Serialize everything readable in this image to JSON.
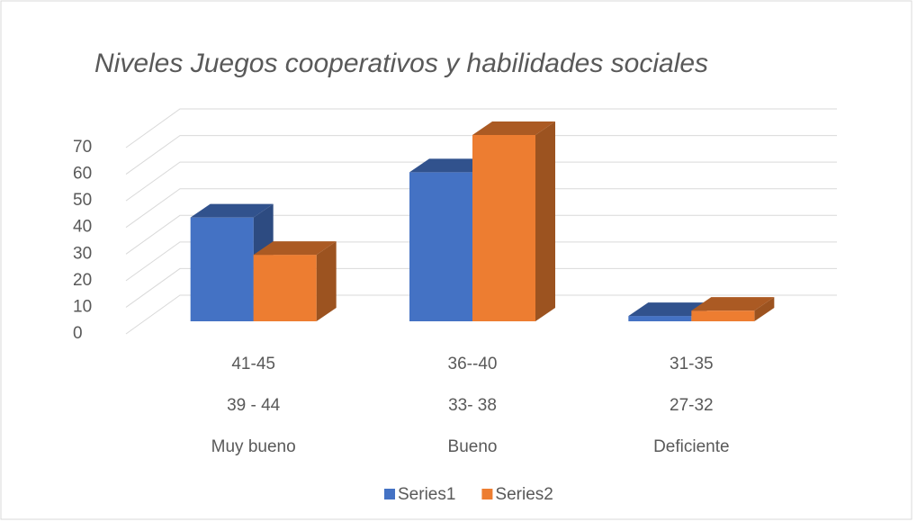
{
  "chart_data": {
    "type": "bar3d",
    "title": "Niveles Juegos cooperativos  y habilidades sociales",
    "categories": [
      [
        "41-45",
        "39 - 44",
        "Muy bueno"
      ],
      [
        "36--40",
        "33- 38",
        "Bueno"
      ],
      [
        "31-35",
        "27-32",
        "Deficiente"
      ]
    ],
    "series": [
      {
        "name": "Series1",
        "color": "#4472c4",
        "values": [
          39,
          56,
          2
        ]
      },
      {
        "name": "Series2",
        "color": "#ed7d31",
        "values": [
          25,
          70,
          4
        ]
      }
    ],
    "ylim": [
      0,
      70
    ],
    "yticks": [
      0,
      10,
      20,
      30,
      40,
      50,
      60,
      70
    ],
    "grid": true,
    "legend": "bottom"
  }
}
